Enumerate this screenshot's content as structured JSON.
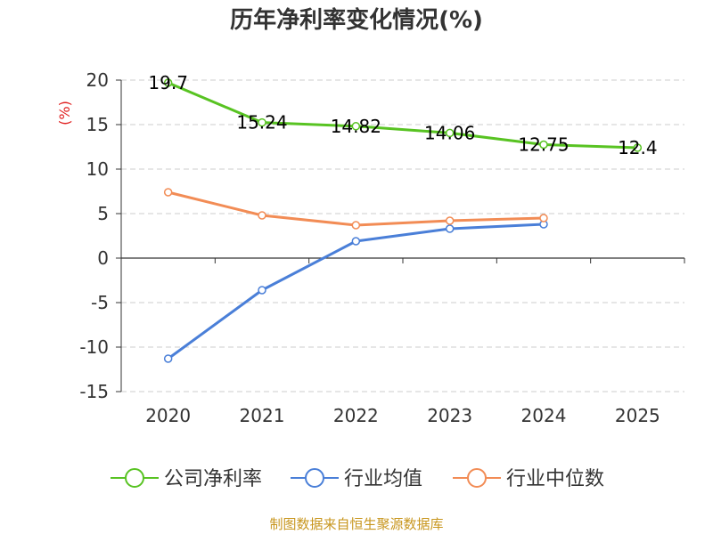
{
  "colors": {
    "company": "#58c322",
    "industry_avg": "#4a7fd8",
    "industry_median": "#f28c55",
    "ylabel": "#e02020",
    "source": "#c8961e",
    "axis": "#333333",
    "grid": "#cccccc"
  },
  "chart_data": {
    "type": "line",
    "title": "历年净利率变化情况(%)",
    "ylabel": "(%)",
    "xlabel": "",
    "categories": [
      "2020",
      "2021",
      "2022",
      "2023",
      "2024",
      "2025"
    ],
    "ylim": [
      -15,
      20
    ],
    "yticks": [
      "20",
      "15",
      "10",
      "5",
      "0",
      "-5",
      "-10",
      "-15"
    ],
    "grid": "horizontal dashed",
    "legend_position": "bottom",
    "series": [
      {
        "name": "公司净利率",
        "color_key": "company",
        "values": [
          19.7,
          15.24,
          14.82,
          14.06,
          12.75,
          12.4
        ],
        "labels": [
          "19.7",
          "15.24",
          "14.82",
          "14.06",
          "12.75",
          "12.4"
        ]
      },
      {
        "name": "行业均值",
        "color_key": "industry_avg",
        "values": [
          -11.3,
          -3.6,
          1.9,
          3.3,
          3.8,
          null
        ]
      },
      {
        "name": "行业中位数",
        "color_key": "industry_median",
        "values": [
          7.4,
          4.8,
          3.7,
          4.2,
          4.5,
          null
        ]
      }
    ]
  },
  "source": "制图数据来自恒生聚源数据库"
}
